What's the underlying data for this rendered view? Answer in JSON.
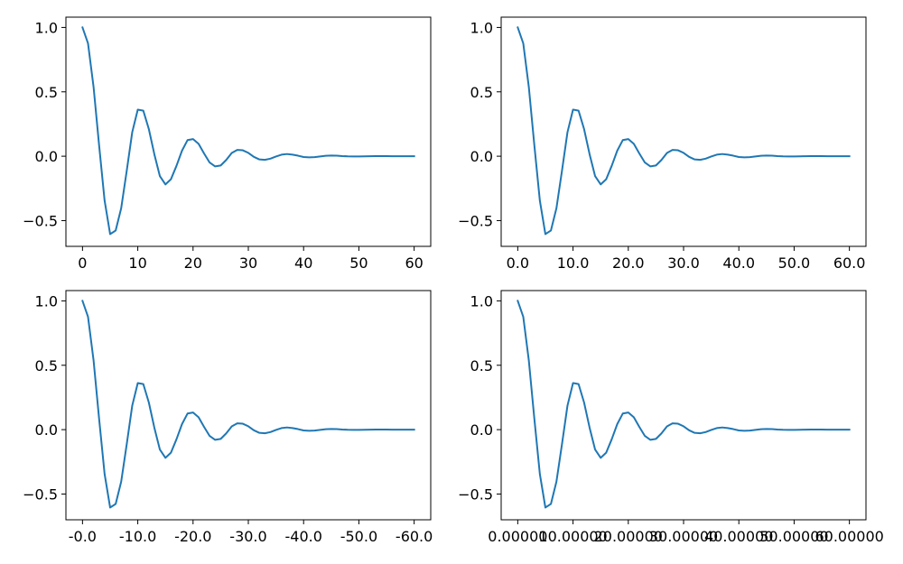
{
  "chart_data": [
    {
      "type": "line",
      "title": "",
      "xlabel": "",
      "ylabel": "",
      "xlim": [
        -3,
        63
      ],
      "ylim": [
        -0.7,
        1.08
      ],
      "grid": false,
      "xtick_labels": [
        "0",
        "10",
        "20",
        "30",
        "40",
        "50",
        "60"
      ],
      "ytick_labels": [
        "1.0",
        "0.5",
        "0.0",
        "−0.5"
      ],
      "series": [
        {
          "color": "#1f77b4",
          "x": [
            0,
            1,
            2,
            3,
            4,
            5,
            6,
            7,
            8,
            9,
            10,
            11,
            12,
            13,
            14,
            15,
            16,
            17,
            18,
            19,
            20,
            21,
            22,
            23,
            24,
            25,
            26,
            27,
            28,
            29,
            30,
            31,
            32,
            33,
            34,
            35,
            36,
            37,
            38,
            39,
            40,
            41,
            42,
            43,
            44,
            45,
            46,
            47,
            48,
            49,
            50,
            51,
            52,
            53,
            54,
            55,
            56,
            57,
            58,
            59,
            60
          ],
          "y": [
            1.0,
            0.876,
            0.539,
            0.086,
            -0.345,
            -0.605,
            -0.577,
            -0.404,
            -0.114,
            0.187,
            0.362,
            0.354,
            0.211,
            0.015,
            -0.155,
            -0.219,
            -0.179,
            -0.075,
            0.043,
            0.125,
            0.133,
            0.096,
            0.021,
            -0.049,
            -0.079,
            -0.072,
            -0.029,
            0.025,
            0.049,
            0.046,
            0.026,
            -0.005,
            -0.025,
            -0.028,
            -0.019,
            -0.002,
            0.012,
            0.017,
            0.012,
            0.004,
            -0.006,
            -0.009,
            -0.007,
            -0.002,
            0.003,
            0.005,
            0.004,
            0.001,
            -0.001,
            -0.002,
            -0.002,
            -0.001,
            0.0,
            0.001,
            0.001,
            0.001,
            0.0,
            0.0,
            0.0,
            0.0,
            0.0
          ]
        }
      ]
    },
    {
      "type": "line",
      "title": "",
      "xlabel": "",
      "ylabel": "",
      "xlim": [
        -3,
        63
      ],
      "ylim": [
        -0.7,
        1.08
      ],
      "grid": false,
      "xtick_labels": [
        "0.0",
        "10.0",
        "20.0",
        "30.0",
        "40.0",
        "50.0",
        "60.0"
      ],
      "ytick_labels": [
        "1.0",
        "0.5",
        "0.0",
        "−0.5"
      ],
      "series": [
        {
          "color": "#1f77b4",
          "x": [
            0,
            1,
            2,
            3,
            4,
            5,
            6,
            7,
            8,
            9,
            10,
            11,
            12,
            13,
            14,
            15,
            16,
            17,
            18,
            19,
            20,
            21,
            22,
            23,
            24,
            25,
            26,
            27,
            28,
            29,
            30,
            31,
            32,
            33,
            34,
            35,
            36,
            37,
            38,
            39,
            40,
            41,
            42,
            43,
            44,
            45,
            46,
            47,
            48,
            49,
            50,
            51,
            52,
            53,
            54,
            55,
            56,
            57,
            58,
            59,
            60
          ],
          "y": [
            1.0,
            0.876,
            0.539,
            0.086,
            -0.345,
            -0.605,
            -0.577,
            -0.404,
            -0.114,
            0.187,
            0.362,
            0.354,
            0.211,
            0.015,
            -0.155,
            -0.219,
            -0.179,
            -0.075,
            0.043,
            0.125,
            0.133,
            0.096,
            0.021,
            -0.049,
            -0.079,
            -0.072,
            -0.029,
            0.025,
            0.049,
            0.046,
            0.026,
            -0.005,
            -0.025,
            -0.028,
            -0.019,
            -0.002,
            0.012,
            0.017,
            0.012,
            0.004,
            -0.006,
            -0.009,
            -0.007,
            -0.002,
            0.003,
            0.005,
            0.004,
            0.001,
            -0.001,
            -0.002,
            -0.002,
            -0.001,
            0.0,
            0.001,
            0.001,
            0.001,
            0.0,
            0.0,
            0.0,
            0.0,
            0.0
          ]
        }
      ]
    },
    {
      "type": "line",
      "title": "",
      "xlabel": "",
      "ylabel": "",
      "xlim": [
        -3,
        63
      ],
      "ylim": [
        -0.7,
        1.08
      ],
      "grid": false,
      "xtick_labels": [
        "-0.0",
        "-10.0",
        "-20.0",
        "-30.0",
        "-40.0",
        "-50.0",
        "-60.0"
      ],
      "ytick_labels": [
        "1.0",
        "0.5",
        "0.0",
        "−0.5"
      ],
      "series": [
        {
          "color": "#1f77b4",
          "x": [
            0,
            1,
            2,
            3,
            4,
            5,
            6,
            7,
            8,
            9,
            10,
            11,
            12,
            13,
            14,
            15,
            16,
            17,
            18,
            19,
            20,
            21,
            22,
            23,
            24,
            25,
            26,
            27,
            28,
            29,
            30,
            31,
            32,
            33,
            34,
            35,
            36,
            37,
            38,
            39,
            40,
            41,
            42,
            43,
            44,
            45,
            46,
            47,
            48,
            49,
            50,
            51,
            52,
            53,
            54,
            55,
            56,
            57,
            58,
            59,
            60
          ],
          "y": [
            1.0,
            0.876,
            0.539,
            0.086,
            -0.345,
            -0.605,
            -0.577,
            -0.404,
            -0.114,
            0.187,
            0.362,
            0.354,
            0.211,
            0.015,
            -0.155,
            -0.219,
            -0.179,
            -0.075,
            0.043,
            0.125,
            0.133,
            0.096,
            0.021,
            -0.049,
            -0.079,
            -0.072,
            -0.029,
            0.025,
            0.049,
            0.046,
            0.026,
            -0.005,
            -0.025,
            -0.028,
            -0.019,
            -0.002,
            0.012,
            0.017,
            0.012,
            0.004,
            -0.006,
            -0.009,
            -0.007,
            -0.002,
            0.003,
            0.005,
            0.004,
            0.001,
            -0.001,
            -0.002,
            -0.002,
            -0.001,
            0.0,
            0.001,
            0.001,
            0.001,
            0.0,
            0.0,
            0.0,
            0.0,
            0.0
          ]
        }
      ]
    },
    {
      "type": "line",
      "title": "",
      "xlabel": "",
      "ylabel": "",
      "xlim": [
        -3,
        63
      ],
      "ylim": [
        -0.7,
        1.08
      ],
      "grid": false,
      "xtick_labels": [
        "0.00000",
        "10.00000",
        "20.00000",
        "30.00000",
        "40.00000",
        "50.00000",
        "60.00000"
      ],
      "ytick_labels": [
        "1.0",
        "0.5",
        "0.0",
        "−0.5"
      ],
      "series": [
        {
          "color": "#1f77b4",
          "x": [
            0,
            1,
            2,
            3,
            4,
            5,
            6,
            7,
            8,
            9,
            10,
            11,
            12,
            13,
            14,
            15,
            16,
            17,
            18,
            19,
            20,
            21,
            22,
            23,
            24,
            25,
            26,
            27,
            28,
            29,
            30,
            31,
            32,
            33,
            34,
            35,
            36,
            37,
            38,
            39,
            40,
            41,
            42,
            43,
            44,
            45,
            46,
            47,
            48,
            49,
            50,
            51,
            52,
            53,
            54,
            55,
            56,
            57,
            58,
            59,
            60
          ],
          "y": [
            1.0,
            0.876,
            0.539,
            0.086,
            -0.345,
            -0.605,
            -0.577,
            -0.404,
            -0.114,
            0.187,
            0.362,
            0.354,
            0.211,
            0.015,
            -0.155,
            -0.219,
            -0.179,
            -0.075,
            0.043,
            0.125,
            0.133,
            0.096,
            0.021,
            -0.049,
            -0.079,
            -0.072,
            -0.029,
            0.025,
            0.049,
            0.046,
            0.026,
            -0.005,
            -0.025,
            -0.028,
            -0.019,
            -0.002,
            0.012,
            0.017,
            0.012,
            0.004,
            -0.006,
            -0.009,
            -0.007,
            -0.002,
            0.003,
            0.005,
            0.004,
            0.001,
            -0.001,
            -0.002,
            -0.002,
            -0.001,
            0.0,
            0.001,
            0.001,
            0.001,
            0.0,
            0.0,
            0.0,
            0.0,
            0.0
          ]
        }
      ]
    }
  ]
}
